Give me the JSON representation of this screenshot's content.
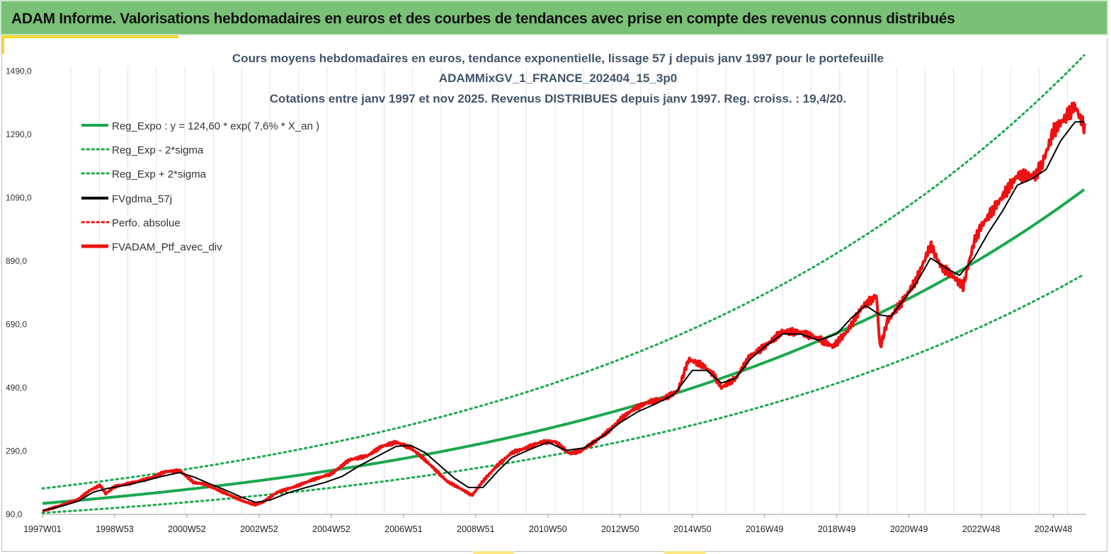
{
  "header": {
    "title": "ADAM Informe. Valorisations hebdomadaires en euros et des courbes de tendances avec prise en compte des revenus connus distribués"
  },
  "colors": {
    "header_bg": "#79c177",
    "accent": "#ffd42a",
    "trend_green": "#1aa84d",
    "smooth_black": "#000000",
    "portfolio_red": "#ee1111",
    "title_color": "#44546a"
  },
  "chart_data": {
    "type": "line",
    "title_lines": [
      "Cours moyens hebdomadaires  en euros, tendance exponentielle, lissage 57 j depuis janv 1997 pour le portefeuille",
      "ADAMMixGV_1_FRANCE_202404_15_3p0",
      "Cotations  entre janv 1997 et nov 2025. Revenus DISTRIBUES depuis janv 1997. Reg. croiss. : 19,4/20."
    ],
    "y_ticks": [
      "90,0",
      "290,0",
      "490,0",
      "690,0",
      "890,0",
      "1090,0",
      "1290,0",
      "1490,0"
    ],
    "ylim": [
      90,
      1590
    ],
    "x_ticks": [
      "1997W01",
      "1998W53",
      "2000W52",
      "2002W52",
      "2004W52",
      "2006W51",
      "2008W51",
      "2010W50",
      "2012W50",
      "2014W50",
      "2016W49",
      "2018W49",
      "2020W49",
      "2022W48",
      "2024W48"
    ],
    "x_tick_years": [
      1997.0,
      1999.0,
      2001.0,
      2003.0,
      2005.0,
      2007.0,
      2009.0,
      2011.0,
      2013.0,
      2015.0,
      2017.0,
      2019.0,
      2021.0,
      2023.0,
      2025.0
    ],
    "xlim": [
      1997.0,
      2025.87
    ],
    "grid": "vertical",
    "legend": [
      {
        "key": "reg_expo",
        "label": "Reg_Expo : y = 124,60 * exp( 7,6% *  X_an )"
      },
      {
        "key": "reg_minus",
        "label": "Reg_Exp - 2*sigma"
      },
      {
        "key": "reg_plus",
        "label": "Reg_Exp + 2*sigma"
      },
      {
        "key": "fvgdma",
        "label": "FVgdma_57j"
      },
      {
        "key": "perfo",
        "label": "Perfo. absolue"
      },
      {
        "key": "fvadam",
        "label": "FVADAM_Ptf_avec_div"
      }
    ],
    "trend": {
      "a": 124.6,
      "rate": 0.076,
      "minus_factor": 0.76,
      "plus_factor": 1.38
    },
    "series_portfolio": {
      "name": "FVADAM_Ptf_avec_div",
      "x": [
        1997.0,
        1997.5,
        1998.0,
        1998.3,
        1998.6,
        1998.75,
        1999.0,
        1999.5,
        2000.0,
        2000.4,
        2000.8,
        2001.2,
        2001.5,
        2001.8,
        2002.2,
        2002.6,
        2002.9,
        2003.1,
        2003.5,
        2004.0,
        2004.5,
        2005.0,
        2005.5,
        2006.0,
        2006.4,
        2006.8,
        2007.2,
        2007.5,
        2007.8,
        2008.2,
        2008.6,
        2008.9,
        2009.2,
        2009.6,
        2010.0,
        2010.4,
        2010.8,
        2011.2,
        2011.6,
        2011.9,
        2012.3,
        2012.7,
        2013.0,
        2013.4,
        2013.8,
        2014.2,
        2014.6,
        2014.9,
        2015.3,
        2015.6,
        2015.8,
        2016.2,
        2016.6,
        2017.0,
        2017.5,
        2018.0,
        2018.5,
        2018.9,
        2019.3,
        2019.7,
        2020.1,
        2020.2,
        2020.4,
        2020.8,
        2021.2,
        2021.6,
        2021.9,
        2022.1,
        2022.5,
        2022.8,
        2023.0,
        2023.5,
        2024.0,
        2024.3,
        2024.5,
        2024.7,
        2025.0,
        2025.3,
        2025.6,
        2025.87
      ],
      "y": [
        100,
        118,
        138,
        165,
        182,
        155,
        178,
        190,
        205,
        225,
        228,
        190,
        186,
        170,
        150,
        130,
        120,
        128,
        160,
        178,
        200,
        218,
        262,
        275,
        305,
        318,
        300,
        272,
        240,
        195,
        170,
        150,
        195,
        245,
        285,
        300,
        318,
        320,
        282,
        290,
        320,
        355,
        390,
        425,
        445,
        455,
        480,
        580,
        560,
        530,
        490,
        520,
        590,
        620,
        668,
        665,
        645,
        620,
        670,
        745,
        780,
        615,
        700,
        760,
        830,
        940,
        870,
        855,
        810,
        950,
        1000,
        1080,
        1160,
        1160,
        1160,
        1200,
        1300,
        1340,
        1380,
        1310
      ]
    },
    "series_smooth": {
      "name": "FVgdma_57j",
      "x": [
        1997.0,
        1997.5,
        1998.0,
        1998.4,
        1998.8,
        1999.3,
        1999.8,
        2000.3,
        2000.8,
        2001.2,
        2001.6,
        2002.0,
        2002.5,
        2002.9,
        2003.3,
        2003.8,
        2004.3,
        2004.8,
        2005.3,
        2005.8,
        2006.3,
        2006.8,
        2007.2,
        2007.6,
        2008.0,
        2008.4,
        2008.8,
        2009.2,
        2009.6,
        2010.0,
        2010.5,
        2011.0,
        2011.5,
        2012.0,
        2012.5,
        2013.0,
        2013.5,
        2014.0,
        2014.5,
        2015.0,
        2015.4,
        2015.8,
        2016.2,
        2016.6,
        2017.0,
        2017.5,
        2018.0,
        2018.5,
        2019.0,
        2019.4,
        2019.8,
        2020.2,
        2020.5,
        2020.8,
        2021.2,
        2021.6,
        2022.0,
        2022.4,
        2022.8,
        2023.2,
        2023.6,
        2024.0,
        2024.4,
        2024.8,
        2025.2,
        2025.6,
        2025.87
      ],
      "y": [
        102,
        115,
        132,
        160,
        172,
        182,
        195,
        210,
        222,
        208,
        188,
        170,
        145,
        128,
        135,
        158,
        175,
        190,
        210,
        245,
        275,
        305,
        308,
        285,
        245,
        205,
        175,
        175,
        225,
        270,
        295,
        318,
        292,
        300,
        335,
        380,
        415,
        440,
        470,
        545,
        545,
        505,
        520,
        580,
        620,
        660,
        660,
        640,
        660,
        710,
        750,
        720,
        715,
        760,
        820,
        900,
        870,
        845,
        900,
        980,
        1050,
        1130,
        1150,
        1180,
        1270,
        1330,
        1330
      ]
    }
  }
}
